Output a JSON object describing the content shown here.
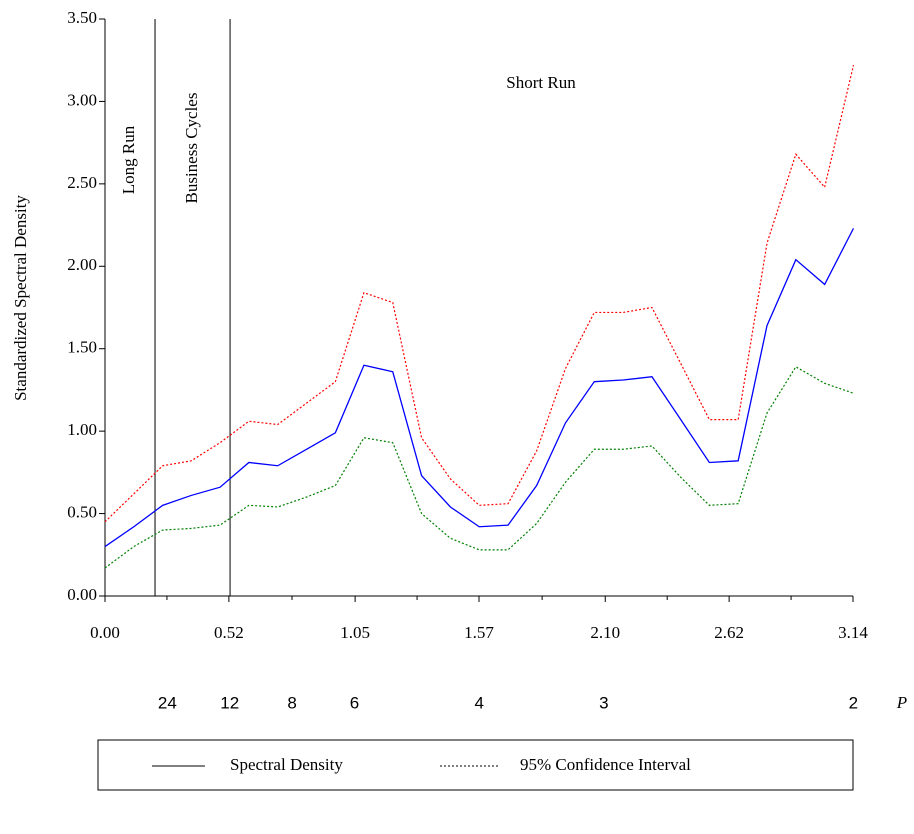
{
  "chart_data": {
    "type": "line",
    "ylabel": "Standardized Spectral Density",
    "x": [
      0,
      0.121,
      0.242,
      0.362,
      0.483,
      0.604,
      0.725,
      0.846,
      0.967,
      1.087,
      1.208,
      1.329,
      1.45,
      1.571,
      1.692,
      1.812,
      1.933,
      2.054,
      2.175,
      2.296,
      2.417,
      2.537,
      2.658,
      2.779,
      2.9,
      3.021,
      3.142
    ],
    "series": [
      {
        "color": "#0000ff",
        "dash": "solid",
        "values": [
          0.3,
          0.42,
          0.55,
          0.61,
          0.66,
          0.81,
          0.79,
          0.89,
          0.99,
          1.4,
          1.36,
          0.73,
          0.54,
          0.42,
          0.43,
          0.67,
          1.05,
          1.3,
          1.31,
          1.33,
          1.07,
          0.81,
          0.82,
          1.64,
          2.04,
          1.89,
          2.23
        ]
      },
      {
        "color": "#ff0000",
        "dash": "dotted",
        "values": [
          0.45,
          0.62,
          0.79,
          0.82,
          0.93,
          1.06,
          1.04,
          1.17,
          1.3,
          1.84,
          1.78,
          0.96,
          0.71,
          0.55,
          0.56,
          0.88,
          1.38,
          1.72,
          1.72,
          1.75,
          1.41,
          1.07,
          1.07,
          2.14,
          2.68,
          2.48,
          3.22
        ]
      },
      {
        "color": "#008000",
        "dash": "dotted",
        "values": [
          0.17,
          0.3,
          0.4,
          0.41,
          0.43,
          0.55,
          0.54,
          0.6,
          0.67,
          0.96,
          0.93,
          0.5,
          0.35,
          0.28,
          0.28,
          0.44,
          0.69,
          0.89,
          0.89,
          0.91,
          0.72,
          0.55,
          0.56,
          1.11,
          1.39,
          1.29,
          1.23
        ]
      }
    ],
    "xlim": [
      0,
      3.14
    ],
    "ylim": [
      0,
      3.5
    ],
    "xticks": [
      {
        "value": 0,
        "label": "0.00"
      },
      {
        "value": 0.52,
        "label": "0.52"
      },
      {
        "value": 1.05,
        "label": "1.05"
      },
      {
        "value": 1.57,
        "label": "1.57"
      },
      {
        "value": 2.1,
        "label": "2.10"
      },
      {
        "value": 2.62,
        "label": "2.62"
      },
      {
        "value": 3.14,
        "label": "3.14"
      }
    ],
    "yticks": [
      {
        "value": 0,
        "label": "0.00"
      },
      {
        "value": 0.5,
        "label": "0.50"
      },
      {
        "value": 1,
        "label": "1.00"
      },
      {
        "value": 1.5,
        "label": "1.50"
      },
      {
        "value": 2,
        "label": "2.00"
      },
      {
        "value": 2.5,
        "label": "2.50"
      },
      {
        "value": 3,
        "label": "3.00"
      },
      {
        "value": 3.5,
        "label": "3.50"
      }
    ],
    "dividers": [
      0.21,
      0.525
    ],
    "annotations": [
      "Long Run",
      "Business Cycles",
      "Short Run"
    ],
    "period_axis": {
      "label": "P",
      "ticks": [
        24,
        12,
        8,
        6,
        4,
        3,
        2
      ]
    },
    "legend": [
      {
        "name": "Spectral Density",
        "dash": "solid"
      },
      {
        "name": "95% Confidence Interval",
        "dash": "dotted"
      }
    ]
  }
}
